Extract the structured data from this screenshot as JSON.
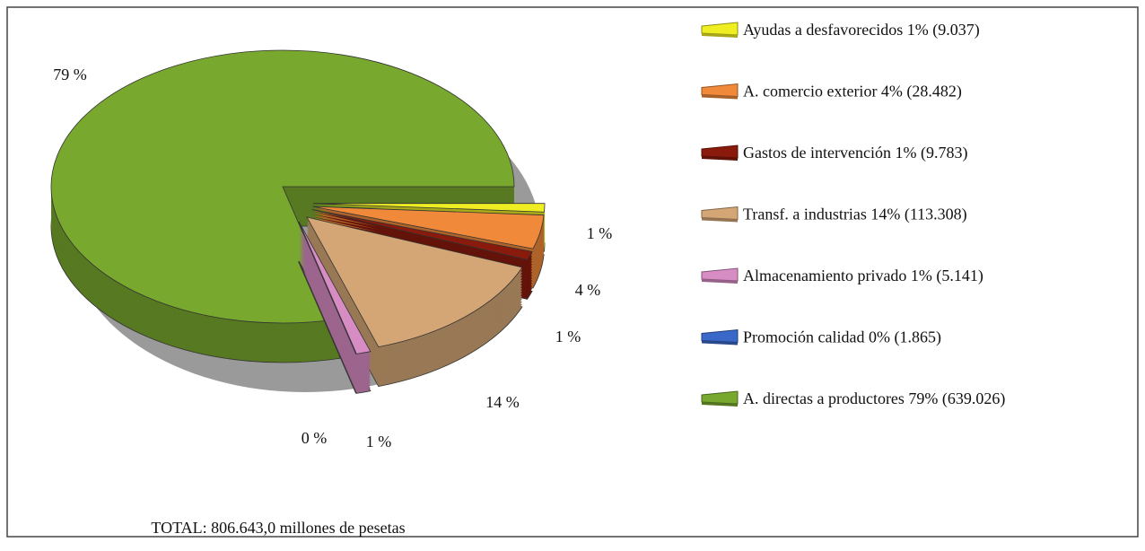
{
  "chart_data": {
    "type": "pie",
    "annotation": "TOTAL: 806.643,0 millones de pesetas",
    "categories": [
      "Ayudas a desfavorecidos 1% (9.037)",
      "A. comercio exterior 4% (28.482)",
      "Gastos de intervención 1% (9.783)",
      "Transf. a industrias 14% (113.308)",
      "Almacenamiento privado 1% (5.141)",
      "Promoción calidad 0% (1.865)",
      "A. directas a productores 79% (639.026)"
    ],
    "values": [
      1,
      4,
      1,
      14,
      1,
      0,
      79
    ],
    "value_labels": [
      "1 %",
      "4 %",
      "1 %",
      "14 %",
      "1 %",
      "0 %",
      "79 %"
    ],
    "colors": [
      "#eeee22",
      "#f08a3a",
      "#8a1a0c",
      "#d4a676",
      "#d88cc4",
      "#3a68c8",
      "#78a82e"
    ],
    "legend": "right"
  }
}
